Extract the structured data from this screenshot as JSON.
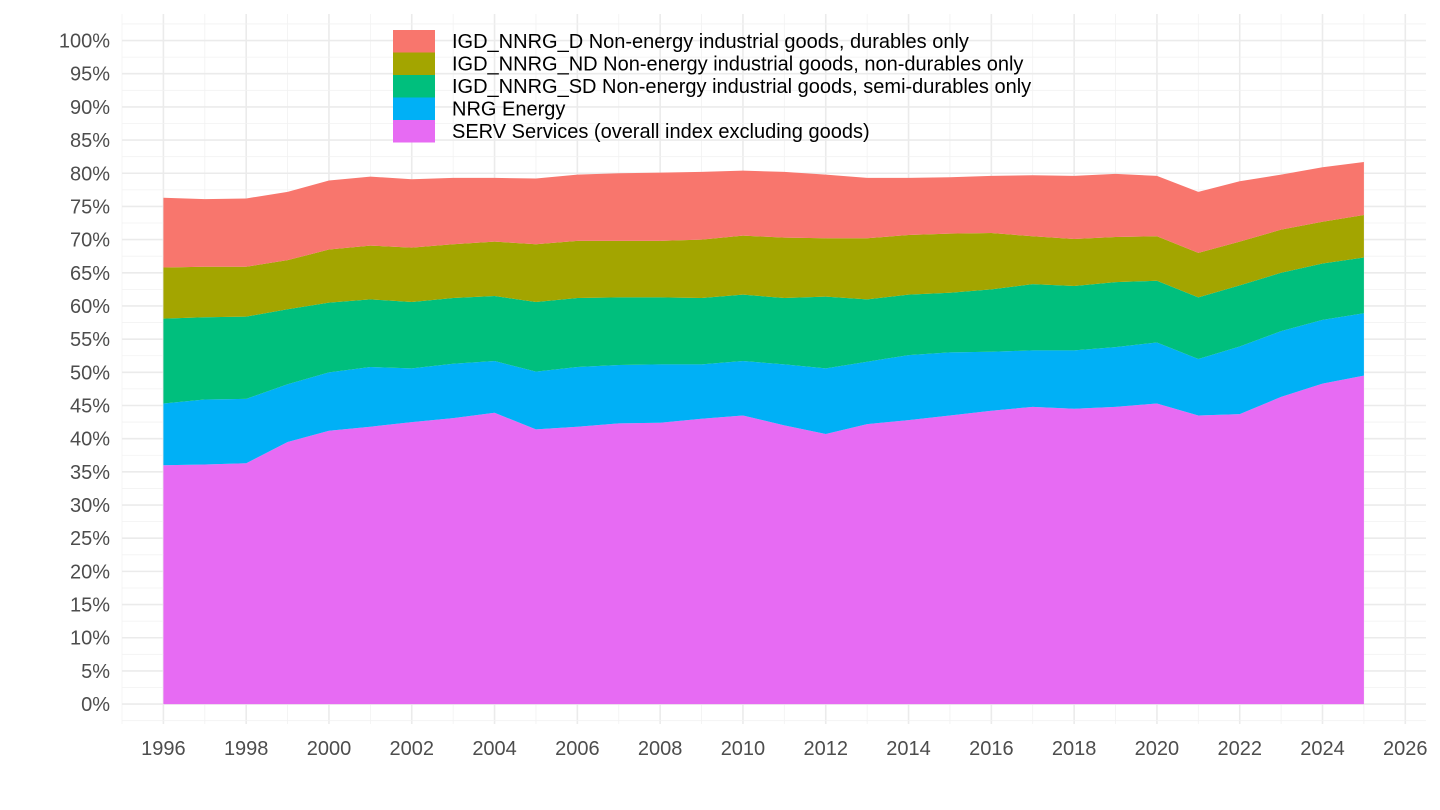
{
  "chart_data": {
    "type": "area",
    "stacked": true,
    "title": "",
    "xlabel": "",
    "ylabel": "",
    "xlim": [
      1995,
      2026.5
    ],
    "ylim": [
      -3,
      104
    ],
    "x_ticks": [
      1996,
      1998,
      2000,
      2002,
      2004,
      2006,
      2008,
      2010,
      2012,
      2014,
      2016,
      2018,
      2020,
      2022,
      2024,
      2026
    ],
    "y_ticks": [
      0,
      5,
      10,
      15,
      20,
      25,
      30,
      35,
      40,
      45,
      50,
      55,
      60,
      65,
      70,
      75,
      80,
      85,
      90,
      95,
      100
    ],
    "y_tick_suffix": "%",
    "grid": true,
    "legend_position": "top-center",
    "x": [
      1996,
      1997,
      1998,
      1999,
      2000,
      2001,
      2002,
      2003,
      2004,
      2005,
      2006,
      2007,
      2008,
      2009,
      2010,
      2011,
      2012,
      2013,
      2014,
      2015,
      2016,
      2017,
      2018,
      2019,
      2020,
      2021,
      2022,
      2023,
      2024,
      2025
    ],
    "stack_order": [
      "SERV Services (overall index excluding goods)",
      "NRG Energy",
      "IGD_NNRG_SD Non-energy industrial goods, semi-durables only",
      "IGD_NNRG_ND Non-energy industrial goods, non-durables only",
      "IGD_NNRG_D Non-energy industrial goods, durables only"
    ],
    "series": [
      {
        "name": "IGD_NNRG_D Non-energy industrial goods, durables only",
        "color": "#F8766D",
        "values": [
          10.5,
          10.2,
          10.3,
          10.3,
          10.4,
          10.4,
          10.3,
          10.0,
          9.6,
          9.9,
          10.0,
          10.2,
          10.3,
          10.2,
          9.8,
          9.9,
          9.6,
          9.1,
          8.6,
          8.5,
          8.6,
          9.2,
          9.5,
          9.5,
          9.1,
          9.2,
          9.1,
          8.3,
          8.2,
          8.0
        ]
      },
      {
        "name": "IGD_NNRG_ND Non-energy industrial goods, non-durables only",
        "color": "#A3A500",
        "values": [
          7.7,
          7.6,
          7.5,
          7.4,
          8.0,
          8.1,
          8.2,
          8.1,
          8.2,
          8.7,
          8.6,
          8.5,
          8.5,
          8.8,
          8.9,
          9.1,
          8.8,
          9.2,
          9.0,
          8.9,
          8.5,
          7.2,
          7.1,
          6.8,
          6.7,
          6.7,
          6.6,
          6.5,
          6.3,
          6.4
        ]
      },
      {
        "name": "IGD_NNRG_SD Non-energy industrial goods, semi-durables only",
        "color": "#00BF7D",
        "values": [
          12.8,
          12.4,
          12.4,
          11.3,
          10.5,
          10.2,
          10.0,
          9.9,
          9.8,
          10.5,
          10.4,
          10.2,
          10.1,
          10.0,
          10.0,
          10.0,
          10.8,
          9.4,
          9.1,
          9.0,
          9.4,
          10.0,
          9.7,
          9.8,
          9.3,
          9.3,
          9.2,
          8.8,
          8.5,
          8.4
        ]
      },
      {
        "name": "NRG Energy",
        "color": "#00B0F6",
        "values": [
          9.3,
          9.8,
          9.7,
          8.7,
          8.8,
          9.0,
          8.1,
          8.2,
          7.8,
          8.7,
          9.0,
          8.8,
          8.8,
          8.2,
          8.2,
          9.2,
          9.9,
          9.4,
          9.8,
          9.5,
          8.9,
          8.5,
          8.8,
          9.0,
          9.2,
          8.5,
          10.2,
          9.9,
          9.6,
          9.4
        ]
      },
      {
        "name": "SERV Services (overall index excluding goods)",
        "color": "#E76BF3",
        "values": [
          36.0,
          36.1,
          36.3,
          39.5,
          41.2,
          41.8,
          42.5,
          43.1,
          43.9,
          41.4,
          41.8,
          42.3,
          42.4,
          43.0,
          43.5,
          42.0,
          40.7,
          42.2,
          42.8,
          43.5,
          44.2,
          44.8,
          44.5,
          44.8,
          45.3,
          43.5,
          43.7,
          46.3,
          48.3,
          49.5
        ]
      }
    ]
  }
}
